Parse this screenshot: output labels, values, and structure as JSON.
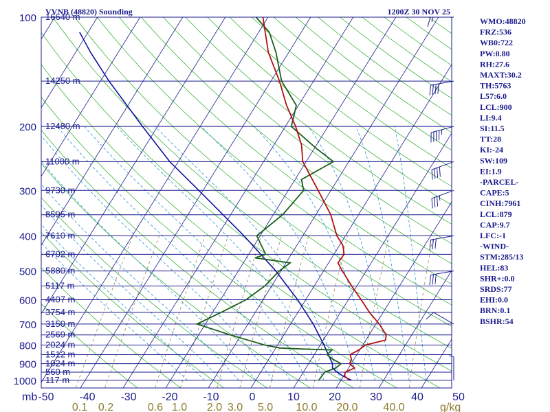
{
  "header": {
    "station": "VVNB (48820) Sounding",
    "time": "1200Z 30 NOV 25"
  },
  "colors": {
    "frame": "#1a1a8c",
    "isobar": "#1a1a8c",
    "isotherm": "#1a1a8c",
    "dry_adiabat": "#22aa22",
    "moist_adiabat": "#3fa0d8",
    "mixing_ratio": "#8a7a3a",
    "temperature": "#b01010",
    "dewpoint": "#1a5e1a",
    "parcel": "#1010a0",
    "text": "#1a1a8c",
    "mixing_label": "#8c7a2a"
  },
  "indices": [
    "WMO:48820",
    "FRZ:536",
    "WB0:722",
    "PW:0.80",
    "RH:27.6",
    "MAXT:30.2",
    "TH:5763",
    "L57:6.0",
    "LCL:900",
    "LI:9.4",
    "SI:11.5",
    "TT:28",
    "KI:-24",
    "SW:109",
    "EI:1.9",
    "-PARCEL-",
    "CAPE:5",
    "CINH:7961",
    "LCL:879",
    "CAP:9.7",
    "LFC:-1",
    "-WIND-",
    "STM:285/13",
    "HEL:83",
    "SHR+:0.0",
    "SRDS:77",
    "EHI:0.0",
    "BRN:0.1",
    "BSHR:54"
  ],
  "chart_data": {
    "type": "skew-t",
    "x_unit_label": "mb",
    "mixing_unit_label": "g/kg",
    "pressure_labels": [
      {
        "p": 100,
        "label": "100"
      },
      {
        "p": 200,
        "label": "200"
      },
      {
        "p": 300,
        "label": "300"
      },
      {
        "p": 400,
        "label": "400"
      },
      {
        "p": 500,
        "label": "500"
      },
      {
        "p": 600,
        "label": "600"
      },
      {
        "p": 700,
        "label": "700"
      },
      {
        "p": 800,
        "label": "800"
      },
      {
        "p": 900,
        "label": "900"
      },
      {
        "p": 1000,
        "label": "1000"
      }
    ],
    "height_labels": [
      {
        "p": 100,
        "label": "16640 m"
      },
      {
        "p": 150,
        "label": "14250 m"
      },
      {
        "p": 200,
        "label": "12480 m"
      },
      {
        "p": 250,
        "label": "11000 m"
      },
      {
        "p": 300,
        "label": "9730 m"
      },
      {
        "p": 350,
        "label": "8595 m"
      },
      {
        "p": 400,
        "label": "7610 m"
      },
      {
        "p": 450,
        "label": "6702 m"
      },
      {
        "p": 500,
        "label": "5880 m"
      },
      {
        "p": 550,
        "label": "5117 m"
      },
      {
        "p": 600,
        "label": "4407 m"
      },
      {
        "p": 650,
        "label": "3754 m"
      },
      {
        "p": 700,
        "label": "3150 m"
      },
      {
        "p": 750,
        "label": "2569 m"
      },
      {
        "p": 800,
        "label": "2024 m"
      },
      {
        "p": 850,
        "label": "1512 m"
      },
      {
        "p": 900,
        "label": "1024 m"
      },
      {
        "p": 950,
        "label": "560 m"
      },
      {
        "p": 1000,
        "label": "117 m"
      }
    ],
    "temperature_ticks": [
      "-50",
      "-40",
      "-30",
      "-20",
      "-10",
      "0",
      "10",
      "20",
      "30",
      "40",
      "50"
    ],
    "mixing_ratio_ticks": [
      "0.1",
      "0.2",
      "0.6",
      "1.0",
      "2.0",
      "3.0",
      "5.0",
      "10.0",
      "20.0",
      "40.0"
    ],
    "mixing_ratio_values": [
      0.1,
      0.2,
      0.6,
      1.0,
      2.0,
      3.0,
      5.0,
      10.0,
      20.0,
      40.0
    ],
    "temperature_profile": [
      {
        "p": 1000,
        "t": 22.0
      },
      {
        "p": 975,
        "t": 20.3
      },
      {
        "p": 950,
        "t": 19.8
      },
      {
        "p": 925,
        "t": 21.4
      },
      {
        "p": 900,
        "t": 19.6
      },
      {
        "p": 875,
        "t": 19.4
      },
      {
        "p": 850,
        "t": 18.4
      },
      {
        "p": 825,
        "t": 19.8
      },
      {
        "p": 800,
        "t": 20.6
      },
      {
        "p": 775,
        "t": 24.6
      },
      {
        "p": 750,
        "t": 24.0
      },
      {
        "p": 700,
        "t": 20.8
      },
      {
        "p": 650,
        "t": 16.8
      },
      {
        "p": 600,
        "t": 13.0
      },
      {
        "p": 550,
        "t": 8.8
      },
      {
        "p": 500,
        "t": 4.4
      },
      {
        "p": 475,
        "t": 2.2
      },
      {
        "p": 450,
        "t": 2.4
      },
      {
        "p": 425,
        "t": 0.8
      },
      {
        "p": 400,
        "t": -2.0
      },
      {
        "p": 350,
        "t": -6.5
      },
      {
        "p": 300,
        "t": -13.0
      },
      {
        "p": 250,
        "t": -20.8
      },
      {
        "p": 225,
        "t": -23.5
      },
      {
        "p": 200,
        "t": -27.6
      },
      {
        "p": 175,
        "t": -32.8
      },
      {
        "p": 150,
        "t": -38.0
      },
      {
        "p": 125,
        "t": -44.8
      },
      {
        "p": 100,
        "t": -51.2
      }
    ],
    "dewpoint_profile": [
      {
        "p": 1000,
        "t": 14.8
      },
      {
        "p": 950,
        "t": 15.0
      },
      {
        "p": 925,
        "t": 17.0
      },
      {
        "p": 900,
        "t": 17.6
      },
      {
        "p": 875,
        "t": 15.0
      },
      {
        "p": 850,
        "t": 13.0
      },
      {
        "p": 825,
        "t": 13.5
      },
      {
        "p": 820,
        "t": 6.0
      },
      {
        "p": 815,
        "t": 1.0
      },
      {
        "p": 800,
        "t": -3.0
      },
      {
        "p": 750,
        "t": -12.6
      },
      {
        "p": 700,
        "t": -22.0
      },
      {
        "p": 650,
        "t": -18.0
      },
      {
        "p": 600,
        "t": -14.0
      },
      {
        "p": 550,
        "t": -11.6
      },
      {
        "p": 500,
        "t": -10.4
      },
      {
        "p": 475,
        "t": -9.0
      },
      {
        "p": 460,
        "t": -18.0
      },
      {
        "p": 450,
        "t": -16.0
      },
      {
        "p": 400,
        "t": -20.8
      },
      {
        "p": 350,
        "t": -17.8
      },
      {
        "p": 300,
        "t": -16.4
      },
      {
        "p": 280,
        "t": -18.5
      },
      {
        "p": 250,
        "t": -13.6
      },
      {
        "p": 230,
        "t": -19.5
      },
      {
        "p": 200,
        "t": -28.6
      },
      {
        "p": 175,
        "t": -30.5
      },
      {
        "p": 150,
        "t": -37.5
      },
      {
        "p": 125,
        "t": -43.0
      },
      {
        "p": 110,
        "t": -47.5
      },
      {
        "p": 100,
        "t": -52.8
      }
    ],
    "parcel_profile": [
      {
        "p": 1000,
        "t": 22.5
      },
      {
        "p": 975,
        "t": 20.0
      },
      {
        "p": 950,
        "t": 17.9
      },
      {
        "p": 925,
        "t": 16.2
      },
      {
        "p": 900,
        "t": 15.6
      },
      {
        "p": 850,
        "t": 13.3
      },
      {
        "p": 800,
        "t": 10.9
      },
      {
        "p": 700,
        "t": 5.3
      },
      {
        "p": 600,
        "t": -1.9
      },
      {
        "p": 500,
        "t": -11.2
      },
      {
        "p": 400,
        "t": -23.8
      },
      {
        "p": 300,
        "t": -41.0
      },
      {
        "p": 250,
        "t": -52.0
      },
      {
        "p": 200,
        "t": -63.5
      },
      {
        "p": 150,
        "t": -78.0
      },
      {
        "p": 125,
        "t": -86.5
      },
      {
        "p": 110,
        "t": -92.0
      }
    ],
    "wind_barbs": [
      {
        "p": 100,
        "dir": 90,
        "spd": 15
      },
      {
        "p": 150,
        "dir": 80,
        "spd": 40
      },
      {
        "p": 200,
        "dir": 75,
        "spd": 45
      },
      {
        "p": 250,
        "dir": 70,
        "spd": 40
      },
      {
        "p": 300,
        "dir": 70,
        "spd": 35
      },
      {
        "p": 400,
        "dir": 80,
        "spd": 30
      },
      {
        "p": 500,
        "dir": 80,
        "spd": 30
      },
      {
        "p": 700,
        "dir": 120,
        "spd": 10
      },
      {
        "p": 1000,
        "dir": 180,
        "spd": 5
      }
    ]
  }
}
